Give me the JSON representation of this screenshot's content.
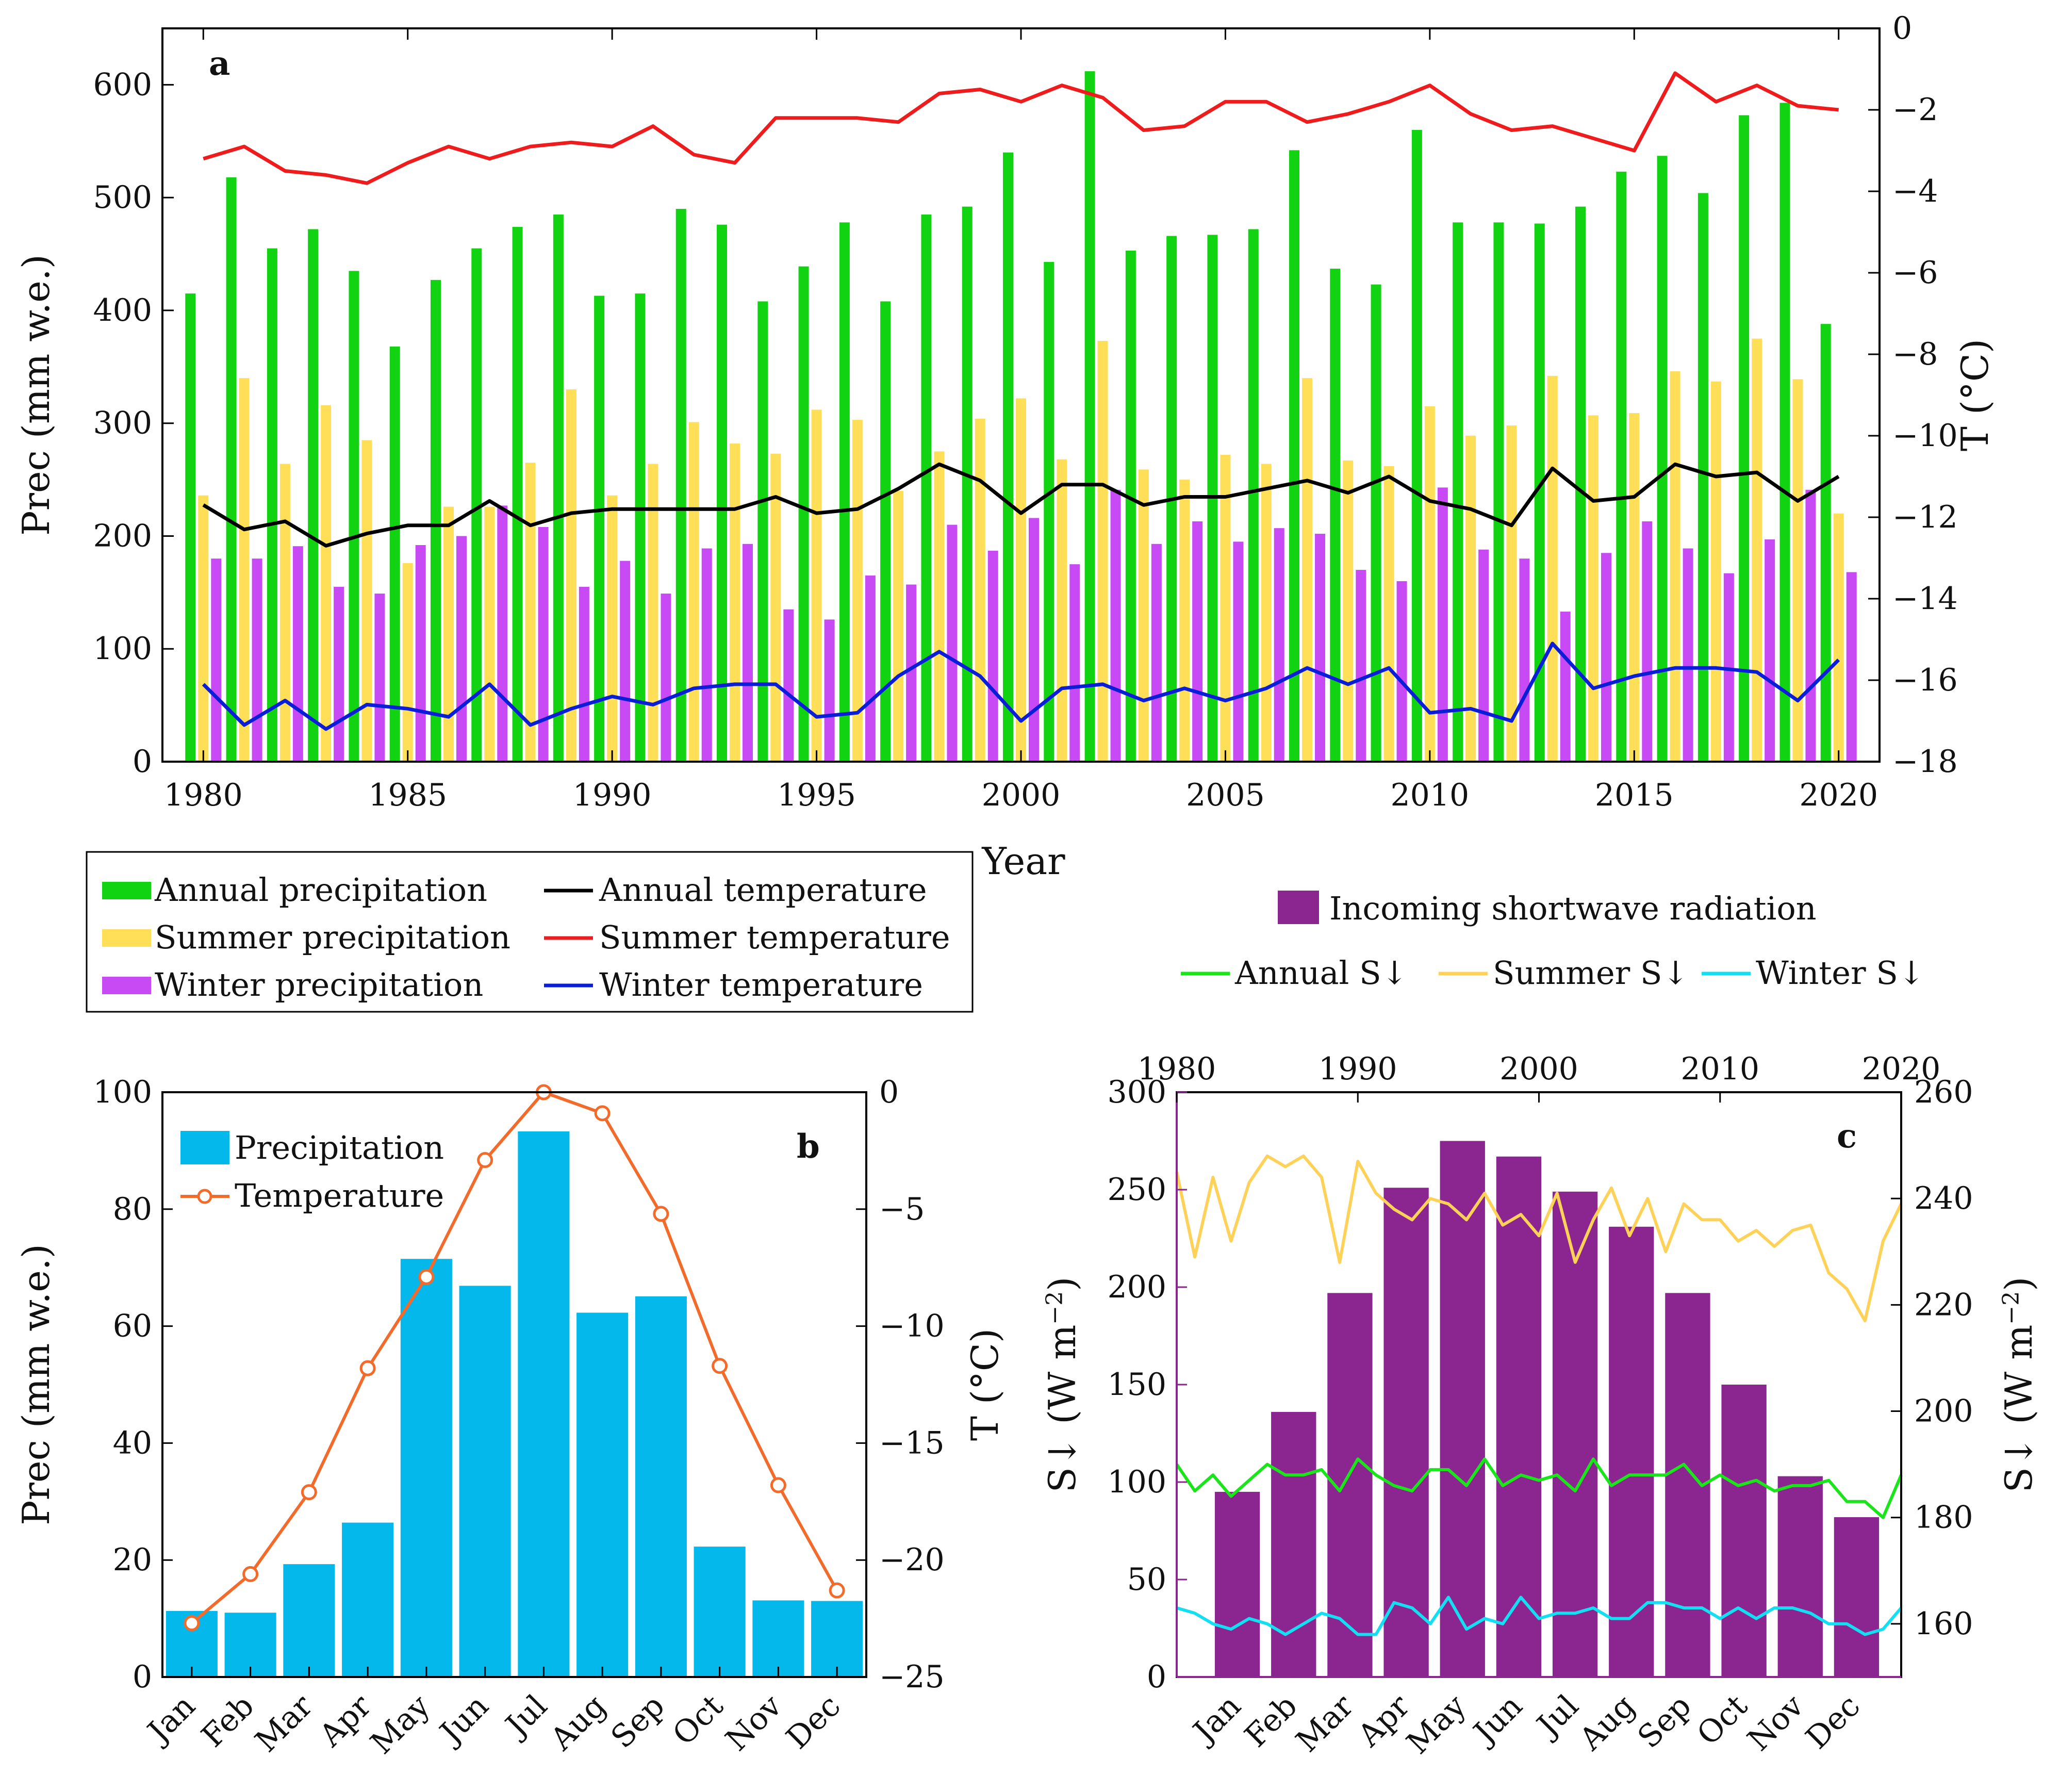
{
  "chart_data": [
    {
      "panel": "a",
      "type": "bar+line",
      "x": [
        1980,
        1981,
        1982,
        1983,
        1984,
        1985,
        1986,
        1987,
        1988,
        1989,
        1990,
        1991,
        1992,
        1993,
        1994,
        1995,
        1996,
        1997,
        1998,
        1999,
        2000,
        2001,
        2002,
        2003,
        2004,
        2005,
        2006,
        2007,
        2008,
        2009,
        2010,
        2011,
        2012,
        2013,
        2014,
        2015,
        2016,
        2017,
        2018,
        2019,
        2020
      ],
      "xlabel": "Year",
      "ylabel": "Prec (mm w.e.)",
      "y2label": "T (°C)",
      "xlim": [
        1979,
        2021
      ],
      "ylim": [
        0,
        650
      ],
      "y2lim": [
        -18,
        0
      ],
      "xticks": [
        1980,
        1985,
        1990,
        1995,
        2000,
        2005,
        2010,
        2015,
        2020
      ],
      "yticks": [
        0,
        100,
        200,
        300,
        400,
        500,
        600
      ],
      "y2ticks": [
        -18,
        -16,
        -14,
        -12,
        -10,
        -8,
        -6,
        -4,
        -2,
        0
      ],
      "bars": [
        {
          "name": "Annual precipitation",
          "color": "#12d312",
          "values": [
            415,
            518,
            455,
            472,
            435,
            368,
            427,
            455,
            474,
            485,
            413,
            415,
            490,
            476,
            408,
            439,
            478,
            408,
            485,
            492,
            540,
            443,
            612,
            453,
            466,
            467,
            472,
            542,
            437,
            423,
            560,
            478,
            478,
            477,
            492,
            523,
            537,
            504,
            573,
            584,
            388
          ]
        },
        {
          "name": "Summer precipitation",
          "color": "#fedf57",
          "values": [
            236,
            340,
            264,
            316,
            285,
            176,
            226,
            226,
            265,
            330,
            236,
            264,
            301,
            282,
            273,
            312,
            303,
            240,
            275,
            304,
            322,
            268,
            373,
            259,
            250,
            272,
            264,
            340,
            267,
            262,
            315,
            289,
            298,
            342,
            307,
            309,
            346,
            337,
            375,
            339,
            220
          ]
        },
        {
          "name": "Winter precipitation",
          "color": "#c84af5",
          "values": [
            180,
            180,
            191,
            155,
            149,
            192,
            200,
            227,
            208,
            155,
            178,
            149,
            189,
            193,
            135,
            126,
            165,
            157,
            210,
            187,
            216,
            175,
            241,
            193,
            213,
            195,
            207,
            202,
            170,
            160,
            243,
            188,
            180,
            133,
            185,
            213,
            189,
            167,
            197,
            241,
            168
          ]
        }
      ],
      "lines": [
        {
          "name": "Annual temperature",
          "color": "#000000",
          "values": [
            -11.7,
            -12.3,
            -12.1,
            -12.7,
            -12.4,
            -12.2,
            -12.2,
            -11.6,
            -12.2,
            -11.9,
            -11.8,
            -11.8,
            -11.8,
            -11.8,
            -11.5,
            -11.9,
            -11.8,
            -11.3,
            -10.7,
            -11.1,
            -11.9,
            -11.2,
            -11.2,
            -11.7,
            -11.5,
            -11.5,
            -11.3,
            -11.1,
            -11.4,
            -11.0,
            -11.6,
            -11.8,
            -12.2,
            -10.8,
            -11.6,
            -11.5,
            -10.7,
            -11.0,
            -10.9,
            -11.6,
            -11.0
          ]
        },
        {
          "name": "Summer temperature",
          "color": "#ee1c1c",
          "values": [
            -3.2,
            -2.9,
            -3.5,
            -3.6,
            -3.8,
            -3.3,
            -2.9,
            -3.2,
            -2.9,
            -2.8,
            -2.9,
            -2.4,
            -3.1,
            -3.3,
            -2.2,
            -2.2,
            -2.2,
            -2.3,
            -1.6,
            -1.5,
            -1.8,
            -1.4,
            -1.7,
            -2.5,
            -2.4,
            -1.8,
            -1.8,
            -2.3,
            -2.1,
            -1.8,
            -1.4,
            -2.1,
            -2.5,
            -2.4,
            -2.7,
            -3.0,
            -1.1,
            -1.8,
            -1.4,
            -1.9,
            -2.0
          ]
        },
        {
          "name": "Winter temperature",
          "color": "#0a1ed8",
          "values": [
            -16.1,
            -17.1,
            -16.5,
            -17.2,
            -16.6,
            -16.7,
            -16.9,
            -16.1,
            -17.1,
            -16.7,
            -16.4,
            -16.6,
            -16.2,
            -16.1,
            -16.1,
            -16.9,
            -16.8,
            -15.9,
            -15.3,
            -15.9,
            -17.0,
            -16.2,
            -16.1,
            -16.5,
            -16.2,
            -16.5,
            -16.2,
            -15.7,
            -16.1,
            -15.7,
            -16.8,
            -16.7,
            -17.0,
            -15.1,
            -16.2,
            -15.9,
            -15.7,
            -15.7,
            -15.8,
            -16.5,
            -15.5
          ]
        }
      ],
      "legend": [
        "Annual precipitation",
        "Summer precipitation",
        "Winter precipitation",
        "Annual temperature",
        "Summer temperature",
        "Winter temperature"
      ]
    },
    {
      "panel": "b",
      "type": "bar+line",
      "categories": [
        "Jan",
        "Feb",
        "Mar",
        "Apr",
        "May",
        "Jun",
        "Jul",
        "Aug",
        "Sep",
        "Oct",
        "Nov",
        "Dec"
      ],
      "ylabel": "Prec (mm w.e.)",
      "y2label": "T (°C)",
      "ylim": [
        0,
        100
      ],
      "y2lim": [
        -25,
        0
      ],
      "yticks": [
        0,
        20,
        40,
        60,
        80,
        100
      ],
      "y2ticks": [
        -25,
        -20,
        -15,
        -10,
        -5,
        0
      ],
      "bars": [
        {
          "name": "Precipitation",
          "color": "#04b8ec",
          "values": [
            11.3,
            11.0,
            19.3,
            26.4,
            71.5,
            66.9,
            93.3,
            62.3,
            65.1,
            22.3,
            13.1,
            13.0
          ]
        }
      ],
      "lines": [
        {
          "name": "Temperature",
          "color": "#f26b2a",
          "values": [
            -22.7,
            -20.6,
            -17.1,
            -11.8,
            -7.9,
            -2.9,
            0,
            -0.9,
            -5.2,
            -11.7,
            -16.8,
            -21.3
          ]
        }
      ],
      "legend": [
        "Precipitation",
        "Temperature"
      ]
    },
    {
      "panel": "c",
      "type": "bar+line",
      "categories": [
        "Jan",
        "Feb",
        "Mar",
        "Apr",
        "May",
        "Jun",
        "Jul",
        "Aug",
        "Sep",
        "Oct",
        "Nov",
        "Dec"
      ],
      "ylabel": "S↓ (W m−2)",
      "y2label": "S↓ (W m−2)",
      "x2label_ticks": [
        "1980",
        "1990",
        "2000",
        "2010",
        "2020"
      ],
      "x2lim": [
        1980,
        2020
      ],
      "ylim": [
        0,
        300
      ],
      "y2lim": [
        150,
        260
      ],
      "yticks": [
        0,
        50,
        100,
        150,
        200,
        250,
        300
      ],
      "y2ticks": [
        160,
        180,
        200,
        220,
        240,
        260
      ],
      "bars": [
        {
          "name": "Incoming shortwave radiation",
          "color": "#8b2590",
          "values": [
            95,
            136,
            197,
            251,
            275,
            267,
            249,
            231,
            197,
            150,
            103,
            82
          ]
        }
      ],
      "lines_x": [
        1980,
        1981,
        1982,
        1983,
        1984,
        1985,
        1986,
        1987,
        1988,
        1989,
        1990,
        1991,
        1992,
        1993,
        1994,
        1995,
        1996,
        1997,
        1998,
        1999,
        2000,
        2001,
        2002,
        2003,
        2004,
        2005,
        2006,
        2007,
        2008,
        2009,
        2010,
        2011,
        2012,
        2013,
        2014,
        2015,
        2016,
        2017,
        2018,
        2019,
        2020
      ],
      "lines": [
        {
          "name": "Annual S↓",
          "color": "#1ae51a",
          "values": [
            190,
            185,
            188,
            184,
            187,
            190,
            188,
            188,
            189,
            185,
            191,
            188,
            186,
            185,
            189,
            189,
            186,
            191,
            186,
            188,
            187,
            188,
            185,
            191,
            186,
            188,
            188,
            188,
            190,
            186,
            188,
            186,
            187,
            185,
            186,
            186,
            187,
            183,
            183,
            180,
            188
          ]
        },
        {
          "name": "Summer S↓",
          "color": "#fed158",
          "values": [
            245,
            229,
            244,
            232,
            243,
            248,
            246,
            248,
            244,
            228,
            247,
            241,
            238,
            236,
            240,
            239,
            236,
            241,
            235,
            237,
            233,
            241,
            228,
            236,
            242,
            233,
            240,
            230,
            239,
            236,
            236,
            232,
            234,
            231,
            234,
            235,
            226,
            223,
            217,
            232,
            239
          ]
        },
        {
          "name": "Winter S↓",
          "color": "#14dff2",
          "values": [
            163,
            162,
            160,
            159,
            161,
            160,
            158,
            160,
            162,
            161,
            158,
            158,
            164,
            163,
            160,
            165,
            159,
            161,
            160,
            165,
            161,
            162,
            162,
            163,
            161,
            161,
            164,
            164,
            163,
            163,
            161,
            163,
            161,
            163,
            163,
            162,
            160,
            160,
            158,
            159,
            163
          ]
        }
      ],
      "legend": [
        "Incoming shortwave radiation",
        "Annual S↓",
        "Summer S↓",
        "Winter S↓"
      ]
    }
  ],
  "labels": {
    "panel_a": "a",
    "panel_b": "b",
    "panel_c": "c",
    "degree_c": "(°C)",
    "t": "T",
    "prec_y": "Prec (mm w.e.)",
    "year": "Year",
    "s_unit_prefix": "S↓ (W m",
    "s_unit_exp": "−2",
    "s_unit_suffix": ")"
  }
}
